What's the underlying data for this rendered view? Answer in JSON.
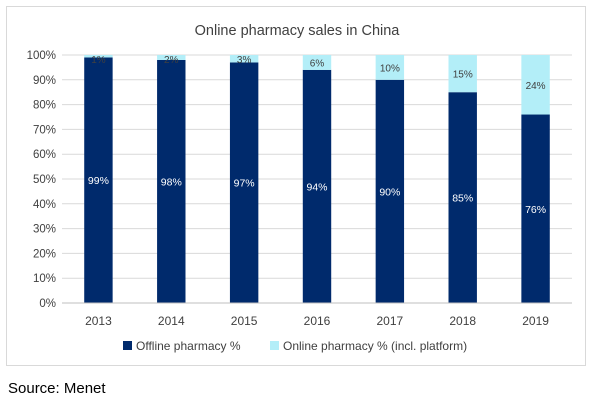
{
  "chart_data": {
    "type": "bar",
    "stacked": true,
    "title": "Online pharmacy sales in China",
    "categories": [
      "2013",
      "2014",
      "2015",
      "2016",
      "2017",
      "2018",
      "2019"
    ],
    "series": [
      {
        "name": "Offline pharmacy %",
        "color": "#002a6c",
        "values": [
          99,
          98,
          97,
          94,
          90,
          85,
          76
        ],
        "labels": [
          "99%",
          "98%",
          "97%",
          "94%",
          "90%",
          "85%",
          "76%"
        ]
      },
      {
        "name": "Online pharmacy %  (incl. platform)",
        "color": "#b3eef8",
        "values": [
          1,
          2,
          3,
          6,
          10,
          15,
          24
        ],
        "labels": [
          "1%",
          "2%",
          "3%",
          "6%",
          "10%",
          "15%",
          "24%"
        ]
      }
    ],
    "ylim": [
      0,
      100
    ],
    "yticks": [
      "0%",
      "10%",
      "20%",
      "30%",
      "40%",
      "50%",
      "60%",
      "70%",
      "80%",
      "90%",
      "100%"
    ],
    "grid": true,
    "legend_position": "bottom"
  },
  "source": "Source: Menet"
}
